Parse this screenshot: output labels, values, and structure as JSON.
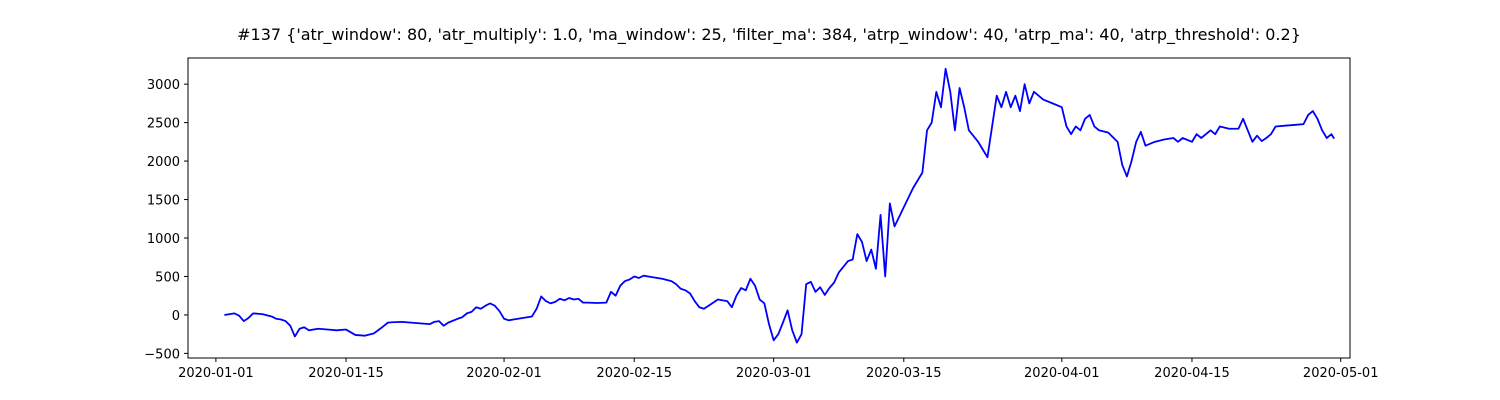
{
  "chart_data": {
    "type": "line",
    "title": "#137 {'atr_window': 80, 'atr_multiply': 1.0, 'ma_window': 25, 'filter_ma': 384, 'atrp_window': 40, 'atrp_ma': 40, 'atrp_threshold': 0.2}",
    "xlabel": "",
    "ylabel": "",
    "x_axis_type": "date",
    "xlim": [
      "2019-12-29",
      "2020-05-02"
    ],
    "ylim": [
      -560,
      3340
    ],
    "x_ticks": [
      "2020-01-01",
      "2020-01-15",
      "2020-02-01",
      "2020-02-15",
      "2020-03-01",
      "2020-03-15",
      "2020-04-01",
      "2020-04-15",
      "2020-05-01"
    ],
    "y_ticks": [
      -500,
      0,
      500,
      1000,
      1500,
      2000,
      2500,
      3000
    ],
    "grid": false,
    "legend": "none",
    "series": [
      {
        "color": "#0000ff",
        "points": [
          [
            "2020-01-02",
            0
          ],
          [
            "2020-01-02T12:00",
            10
          ],
          [
            "2020-01-03",
            20
          ],
          [
            "2020-01-03T12:00",
            -10
          ],
          [
            "2020-01-04",
            -80
          ],
          [
            "2020-01-04T12:00",
            -40
          ],
          [
            "2020-01-05",
            20
          ],
          [
            "2020-01-06",
            10
          ],
          [
            "2020-01-07",
            -20
          ],
          [
            "2020-01-07T12:00",
            -50
          ],
          [
            "2020-01-08",
            -60
          ],
          [
            "2020-01-08T12:00",
            -80
          ],
          [
            "2020-01-09",
            -140
          ],
          [
            "2020-01-09T12:00",
            -280
          ],
          [
            "2020-01-10",
            -180
          ],
          [
            "2020-01-10T12:00",
            -160
          ],
          [
            "2020-01-11",
            -200
          ],
          [
            "2020-01-12",
            -180
          ],
          [
            "2020-01-13",
            -190
          ],
          [
            "2020-01-14",
            -200
          ],
          [
            "2020-01-15",
            -190
          ],
          [
            "2020-01-16",
            -260
          ],
          [
            "2020-01-17",
            -270
          ],
          [
            "2020-01-18",
            -240
          ],
          [
            "2020-01-19",
            -150
          ],
          [
            "2020-01-19T12:00",
            -100
          ],
          [
            "2020-01-20",
            -95
          ],
          [
            "2020-01-21",
            -90
          ],
          [
            "2020-01-22",
            -100
          ],
          [
            "2020-01-23",
            -110
          ],
          [
            "2020-01-24",
            -120
          ],
          [
            "2020-01-24T12:00",
            -90
          ],
          [
            "2020-01-25",
            -80
          ],
          [
            "2020-01-25T12:00",
            -140
          ],
          [
            "2020-01-26",
            -100
          ],
          [
            "2020-01-27",
            -50
          ],
          [
            "2020-01-27T12:00",
            -30
          ],
          [
            "2020-01-28",
            20
          ],
          [
            "2020-01-28T12:00",
            40
          ],
          [
            "2020-01-29",
            100
          ],
          [
            "2020-01-29T12:00",
            80
          ],
          [
            "2020-01-30",
            120
          ],
          [
            "2020-01-30T12:00",
            150
          ],
          [
            "2020-01-31",
            120
          ],
          [
            "2020-01-31T12:00",
            50
          ],
          [
            "2020-02-01",
            -50
          ],
          [
            "2020-02-01T12:00",
            -70
          ],
          [
            "2020-02-02",
            -60
          ],
          [
            "2020-02-03",
            -40
          ],
          [
            "2020-02-04",
            -20
          ],
          [
            "2020-02-04T12:00",
            80
          ],
          [
            "2020-02-05",
            240
          ],
          [
            "2020-02-05T12:00",
            180
          ],
          [
            "2020-02-06",
            150
          ],
          [
            "2020-02-06T12:00",
            170
          ],
          [
            "2020-02-07",
            210
          ],
          [
            "2020-02-07T12:00",
            190
          ],
          [
            "2020-02-08",
            220
          ],
          [
            "2020-02-08T12:00",
            200
          ],
          [
            "2020-02-09",
            210
          ],
          [
            "2020-02-09T12:00",
            160
          ],
          [
            "2020-02-10",
            160
          ],
          [
            "2020-02-11",
            155
          ],
          [
            "2020-02-12",
            160
          ],
          [
            "2020-02-12T12:00",
            300
          ],
          [
            "2020-02-13",
            250
          ],
          [
            "2020-02-13T12:00",
            380
          ],
          [
            "2020-02-14",
            440
          ],
          [
            "2020-02-14T12:00",
            460
          ],
          [
            "2020-02-15",
            500
          ],
          [
            "2020-02-15T12:00",
            480
          ],
          [
            "2020-02-16",
            510
          ],
          [
            "2020-02-17",
            490
          ],
          [
            "2020-02-18",
            470
          ],
          [
            "2020-02-19",
            440
          ],
          [
            "2020-02-19T12:00",
            400
          ],
          [
            "2020-02-20",
            340
          ],
          [
            "2020-02-20T12:00",
            320
          ],
          [
            "2020-02-21",
            280
          ],
          [
            "2020-02-21T12:00",
            180
          ],
          [
            "2020-02-22",
            100
          ],
          [
            "2020-02-22T12:00",
            80
          ],
          [
            "2020-02-23",
            120
          ],
          [
            "2020-02-24",
            200
          ],
          [
            "2020-02-25",
            180
          ],
          [
            "2020-02-25T12:00",
            100
          ],
          [
            "2020-02-26",
            250
          ],
          [
            "2020-02-26T12:00",
            350
          ],
          [
            "2020-02-27",
            320
          ],
          [
            "2020-02-27T12:00",
            470
          ],
          [
            "2020-02-28",
            380
          ],
          [
            "2020-02-28T12:00",
            200
          ],
          [
            "2020-02-29",
            150
          ],
          [
            "2020-02-29T12:00",
            -120
          ],
          [
            "2020-03-01",
            -330
          ],
          [
            "2020-03-01T12:00",
            -250
          ],
          [
            "2020-03-02",
            -100
          ],
          [
            "2020-03-02T12:00",
            60
          ],
          [
            "2020-03-03",
            -200
          ],
          [
            "2020-03-03T12:00",
            -360
          ],
          [
            "2020-03-04",
            -250
          ],
          [
            "2020-03-04T12:00",
            400
          ],
          [
            "2020-03-05",
            430
          ],
          [
            "2020-03-05T12:00",
            300
          ],
          [
            "2020-03-06",
            360
          ],
          [
            "2020-03-06T12:00",
            260
          ],
          [
            "2020-03-07",
            350
          ],
          [
            "2020-03-07T12:00",
            420
          ],
          [
            "2020-03-08",
            550
          ],
          [
            "2020-03-09",
            700
          ],
          [
            "2020-03-09T12:00",
            720
          ],
          [
            "2020-03-10",
            1050
          ],
          [
            "2020-03-10T12:00",
            950
          ],
          [
            "2020-03-11",
            700
          ],
          [
            "2020-03-11T12:00",
            850
          ],
          [
            "2020-03-12",
            600
          ],
          [
            "2020-03-12T12:00",
            1300
          ],
          [
            "2020-03-13",
            500
          ],
          [
            "2020-03-13T12:00",
            1450
          ],
          [
            "2020-03-14",
            1150
          ],
          [
            "2020-03-15",
            1400
          ],
          [
            "2020-03-16",
            1650
          ],
          [
            "2020-03-17",
            1850
          ],
          [
            "2020-03-17T12:00",
            2400
          ],
          [
            "2020-03-18",
            2500
          ],
          [
            "2020-03-18T12:00",
            2900
          ],
          [
            "2020-03-19",
            2700
          ],
          [
            "2020-03-19T12:00",
            3200
          ],
          [
            "2020-03-20",
            2900
          ],
          [
            "2020-03-20T12:00",
            2400
          ],
          [
            "2020-03-21",
            2950
          ],
          [
            "2020-03-21T12:00",
            2700
          ],
          [
            "2020-03-22",
            2400
          ],
          [
            "2020-03-23",
            2250
          ],
          [
            "2020-03-24",
            2050
          ],
          [
            "2020-03-24T12:00",
            2450
          ],
          [
            "2020-03-25",
            2850
          ],
          [
            "2020-03-25T12:00",
            2700
          ],
          [
            "2020-03-26",
            2900
          ],
          [
            "2020-03-26T12:00",
            2700
          ],
          [
            "2020-03-27",
            2850
          ],
          [
            "2020-03-27T12:00",
            2650
          ],
          [
            "2020-03-28",
            3000
          ],
          [
            "2020-03-28T12:00",
            2750
          ],
          [
            "2020-03-29",
            2900
          ],
          [
            "2020-03-30",
            2800
          ],
          [
            "2020-03-31",
            2750
          ],
          [
            "2020-04-01",
            2700
          ],
          [
            "2020-04-01T12:00",
            2450
          ],
          [
            "2020-04-02",
            2350
          ],
          [
            "2020-04-02T12:00",
            2450
          ],
          [
            "2020-04-03",
            2400
          ],
          [
            "2020-04-03T12:00",
            2550
          ],
          [
            "2020-04-04",
            2600
          ],
          [
            "2020-04-04T12:00",
            2450
          ],
          [
            "2020-04-05",
            2400
          ],
          [
            "2020-04-06",
            2370
          ],
          [
            "2020-04-07",
            2250
          ],
          [
            "2020-04-07T12:00",
            1950
          ],
          [
            "2020-04-08",
            1800
          ],
          [
            "2020-04-08T12:00",
            2000
          ],
          [
            "2020-04-09",
            2250
          ],
          [
            "2020-04-09T12:00",
            2380
          ],
          [
            "2020-04-10",
            2200
          ],
          [
            "2020-04-11",
            2250
          ],
          [
            "2020-04-12",
            2280
          ],
          [
            "2020-04-13",
            2300
          ],
          [
            "2020-04-13T12:00",
            2250
          ],
          [
            "2020-04-14",
            2300
          ],
          [
            "2020-04-15",
            2250
          ],
          [
            "2020-04-15T12:00",
            2350
          ],
          [
            "2020-04-16",
            2300
          ],
          [
            "2020-04-17",
            2400
          ],
          [
            "2020-04-17T12:00",
            2350
          ],
          [
            "2020-04-18",
            2450
          ],
          [
            "2020-04-19",
            2420
          ],
          [
            "2020-04-20",
            2420
          ],
          [
            "2020-04-20T12:00",
            2550
          ],
          [
            "2020-04-21",
            2400
          ],
          [
            "2020-04-21T12:00",
            2250
          ],
          [
            "2020-04-22",
            2330
          ],
          [
            "2020-04-22T12:00",
            2260
          ],
          [
            "2020-04-23",
            2300
          ],
          [
            "2020-04-23T12:00",
            2350
          ],
          [
            "2020-04-24",
            2450
          ],
          [
            "2020-04-25",
            2460
          ],
          [
            "2020-04-26",
            2470
          ],
          [
            "2020-04-27",
            2480
          ],
          [
            "2020-04-27T12:00",
            2600
          ],
          [
            "2020-04-28",
            2650
          ],
          [
            "2020-04-28T12:00",
            2550
          ],
          [
            "2020-04-29",
            2400
          ],
          [
            "2020-04-29T12:00",
            2300
          ],
          [
            "2020-04-30",
            2350
          ],
          [
            "2020-04-30T06:00",
            2300
          ]
        ]
      }
    ]
  }
}
